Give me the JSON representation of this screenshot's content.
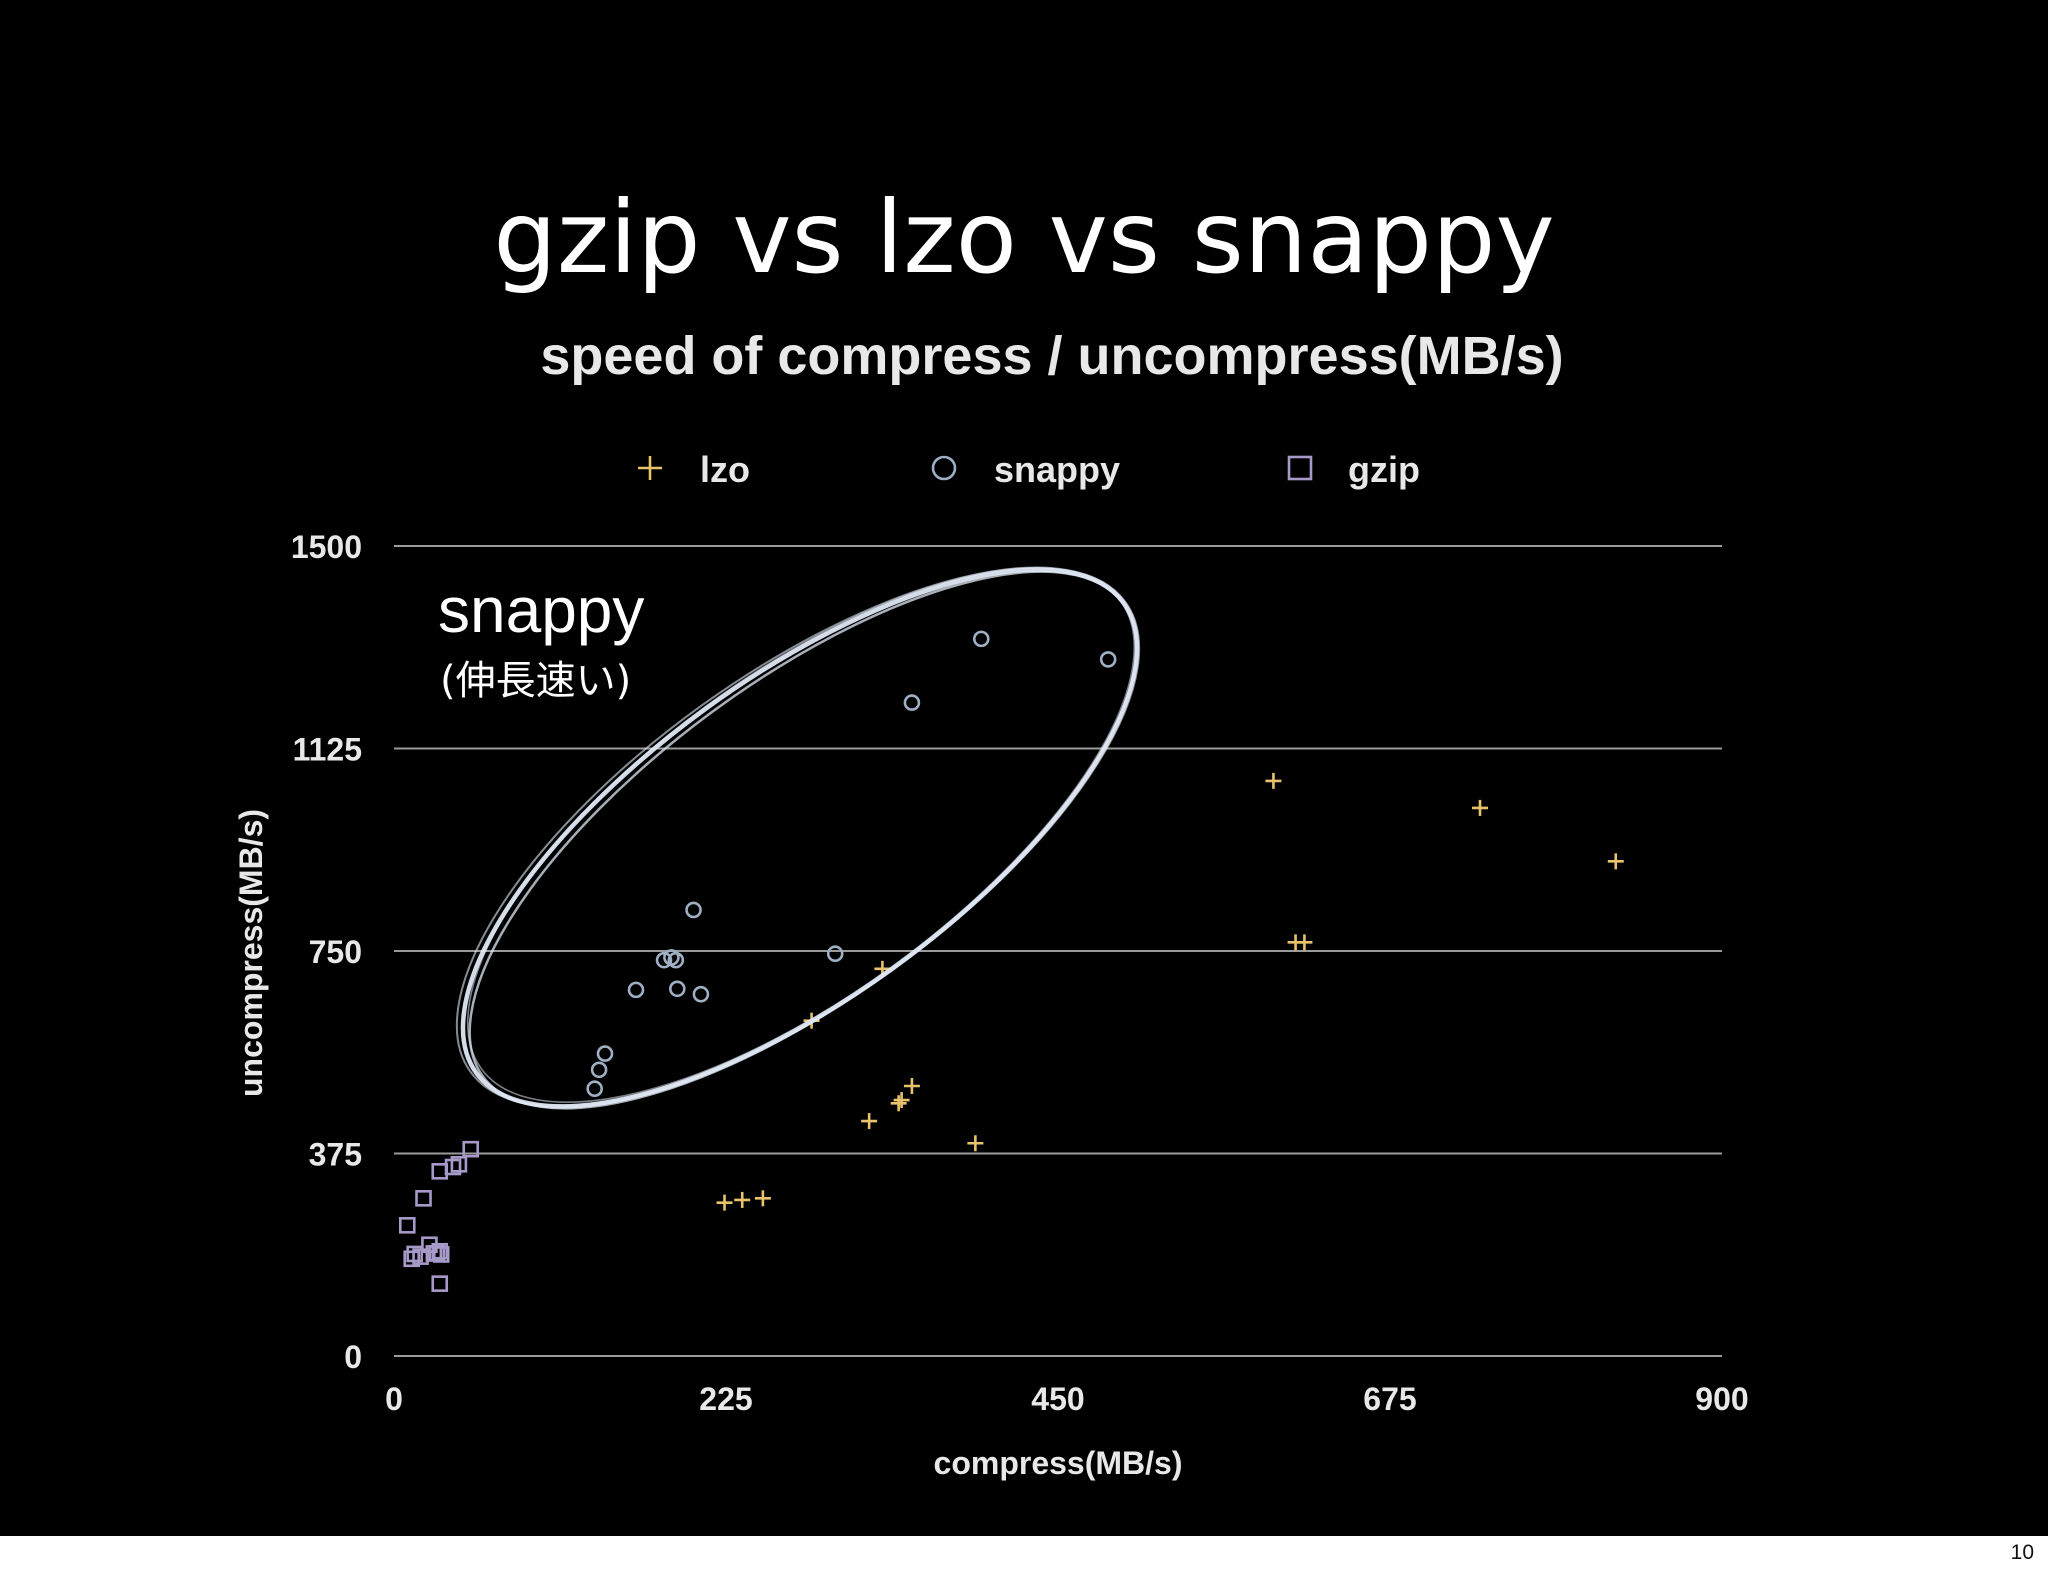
{
  "slide": {
    "title": "gzip vs lzo vs snappy",
    "page_number": "10"
  },
  "annotation": {
    "label": "snappy",
    "note": "(伸長速い)",
    "highlight_color": "#dfe8f4"
  },
  "colors": {
    "background": "#000000",
    "grid": "#9a9a9a",
    "text": "#e8e8e8",
    "lzo": "#e8c36b",
    "snappy": "#9fb0c4",
    "gzip": "#a79ac9"
  },
  "chart_data": {
    "type": "scatter",
    "title": "speed of compress / uncompress(MB/s)",
    "xlabel": "compress(MB/s)",
    "ylabel": "uncompress(MB/s)",
    "xlim": [
      0,
      900
    ],
    "ylim": [
      0,
      1500
    ],
    "xticks": [
      "0",
      "225",
      "450",
      "675",
      "900"
    ],
    "yticks": [
      "0",
      "375",
      "750",
      "1125",
      "1500"
    ],
    "grid": "horizontal",
    "legend_position": "top",
    "series": [
      {
        "name": "lzo",
        "marker": "plus",
        "x": [
          224,
          236,
          250,
          283,
          322,
          342,
          344,
          351,
          331,
          394,
          596,
          611,
          617,
          736,
          828
        ],
        "y": [
          284,
          289,
          292,
          621,
          435,
          468,
          474,
          500,
          717,
          394,
          1065,
          766,
          766,
          1015,
          916
        ]
      },
      {
        "name": "snappy",
        "marker": "circle",
        "x": [
          136,
          139,
          143,
          164,
          183,
          188,
          191,
          192,
          203,
          208,
          299,
          351,
          398,
          484
        ],
        "y": [
          495,
          530,
          560,
          678,
          733,
          738,
          733,
          680,
          826,
          670,
          745,
          1210,
          1328,
          1290
        ],
        "highlighted": true
      },
      {
        "name": "gzip",
        "marker": "square",
        "x": [
          9,
          12,
          14,
          18,
          20,
          24,
          27,
          29,
          31,
          32,
          31,
          31,
          40,
          44,
          52
        ],
        "y": [
          242,
          180,
          189,
          184,
          292,
          206,
          190,
          190,
          194,
          188,
          134,
          342,
          350,
          355,
          383
        ]
      }
    ]
  }
}
